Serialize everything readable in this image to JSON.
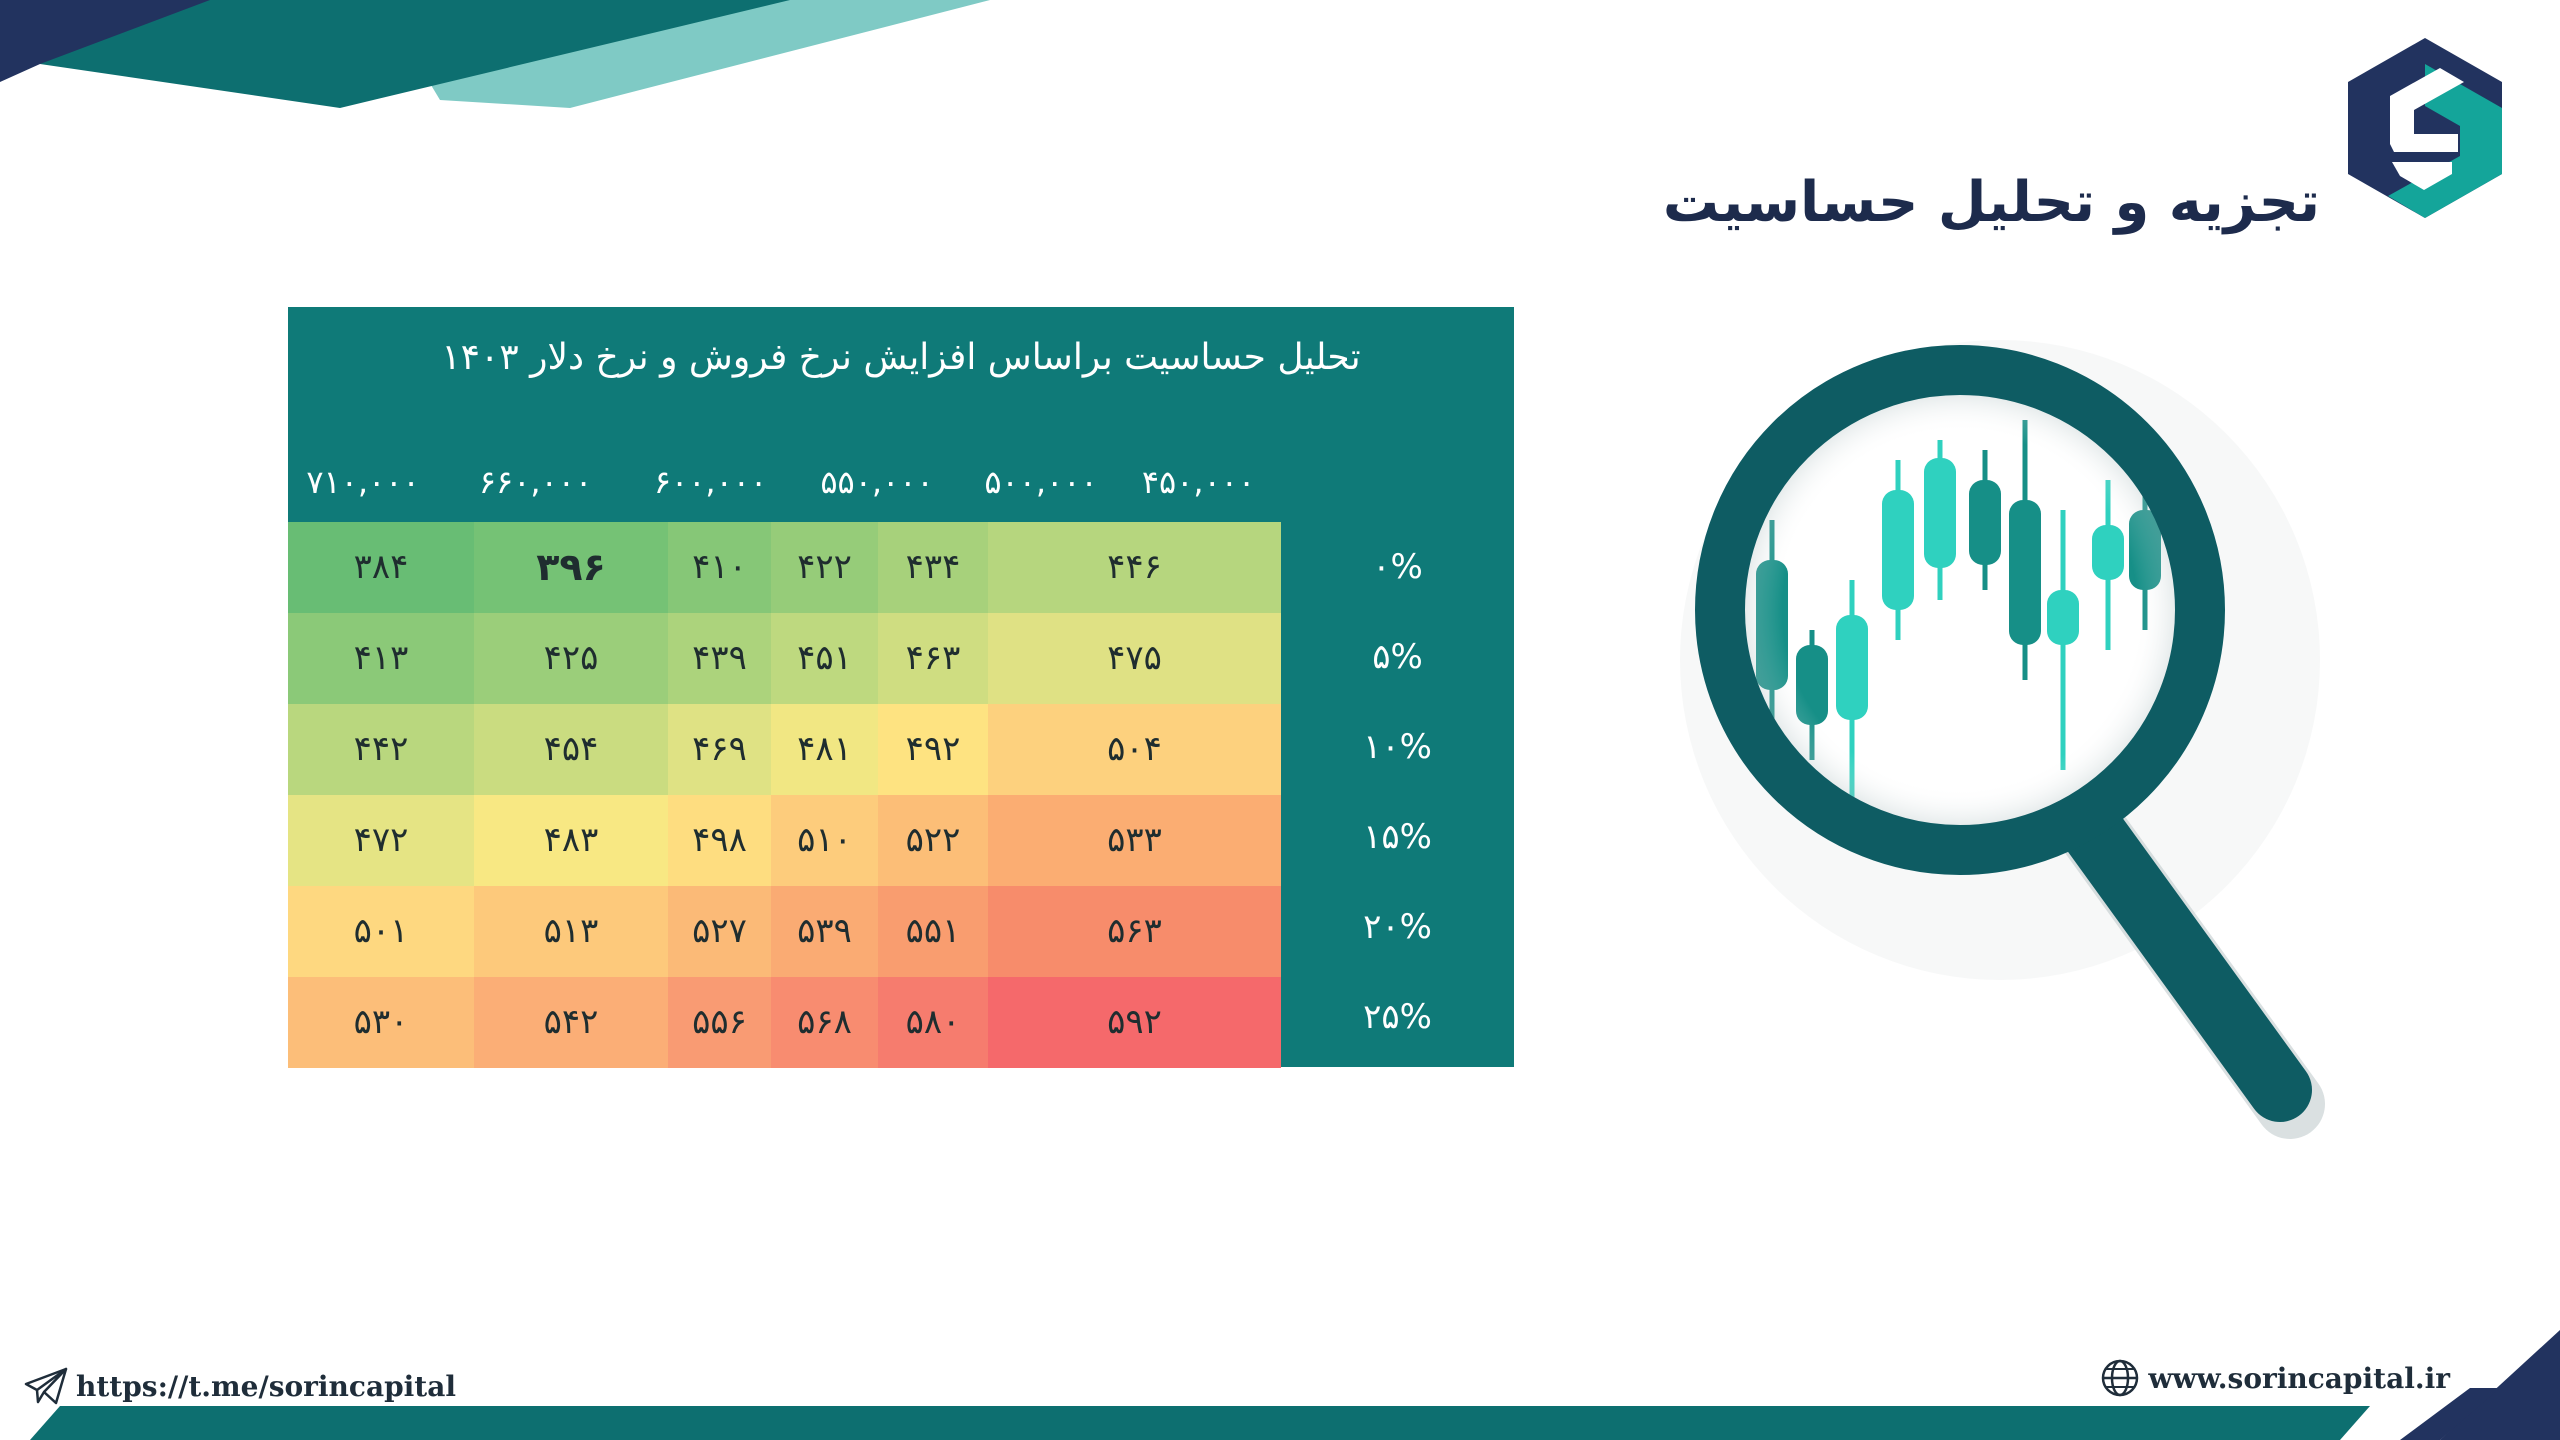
{
  "page": {
    "title": "تجزیه و تحلیل حساسیت"
  },
  "table": {
    "title": "تحلیل حساسیت براساس افزایش نرخ فروش و نرخ دلار ۱۴۰۳",
    "column_headers": [
      "۴۵۰,۰۰۰",
      "۵۰۰,۰۰۰",
      "۵۵۰,۰۰۰",
      "۶۰۰,۰۰۰",
      "۶۶۰,۰۰۰",
      "۷۱۰,۰۰۰"
    ],
    "row_headers": [
      "۰%",
      "۵%",
      "۱۰%",
      "۱۵%",
      "۲۰%",
      "۲۵%"
    ],
    "rows": [
      [
        "۴۴۶",
        "۴۳۴",
        "۴۲۲",
        "۴۱۰",
        "۳۹۶",
        "۳۸۴"
      ],
      [
        "۴۷۵",
        "۴۶۳",
        "۴۵۱",
        "۴۳۹",
        "۴۲۵",
        "۴۱۳"
      ],
      [
        "۵۰۴",
        "۴۹۲",
        "۴۸۱",
        "۴۶۹",
        "۴۵۴",
        "۴۴۲"
      ],
      [
        "۵۳۳",
        "۵۲۲",
        "۵۱۰",
        "۴۹۸",
        "۴۸۳",
        "۴۷۲"
      ],
      [
        "۵۶۳",
        "۵۵۱",
        "۵۳۹",
        "۵۲۷",
        "۵۱۳",
        "۵۰۱"
      ],
      [
        "۵۹۲",
        "۵۸۰",
        "۵۶۸",
        "۵۵۶",
        "۵۴۲",
        "۵۳۰"
      ]
    ],
    "cell_colors": [
      [
        "#b6d67e",
        "#a7d17b",
        "#96cc79",
        "#86c777",
        "#75c275",
        "#68bd74"
      ],
      [
        "#dfe184",
        "#cfdd81",
        "#bed97f",
        "#acd37c",
        "#9bce7a",
        "#8bc978"
      ],
      [
        "#fdd17e",
        "#fee381",
        "#f1e783",
        "#dfe284",
        "#cadc80",
        "#b9d77e"
      ],
      [
        "#fbad72",
        "#fcbe77",
        "#fdcc7c",
        "#fedd80",
        "#f8e883",
        "#e5e484"
      ],
      [
        "#f78c6b",
        "#f99d6f",
        "#faab73",
        "#fbba77",
        "#fdc97b",
        "#fed880"
      ],
      [
        "#f5696b",
        "#f67c6e",
        "#f88c70",
        "#f99b73",
        "#fbae76",
        "#fcbe79"
      ]
    ],
    "highlight_cell": {
      "row": 0,
      "col": 4
    },
    "panel_color": "#0f7a78"
  },
  "footer": {
    "telegram_link": "https://t.me/sorincapital",
    "website": "www.sorincapital.ir"
  },
  "icons": {
    "logo": "sorin-logo-icon",
    "magnifier": "magnifier-candlestick-icon",
    "telegram": "paper-plane-icon",
    "globe": "globe-icon"
  },
  "colors": {
    "navy": "#22335f",
    "teal": "#0f7a78",
    "light_teal": "#7fcac5",
    "candle_teal": "#2fd1bf",
    "candle_dark": "#168f87",
    "magnifier_dark": "#0e5c63"
  }
}
